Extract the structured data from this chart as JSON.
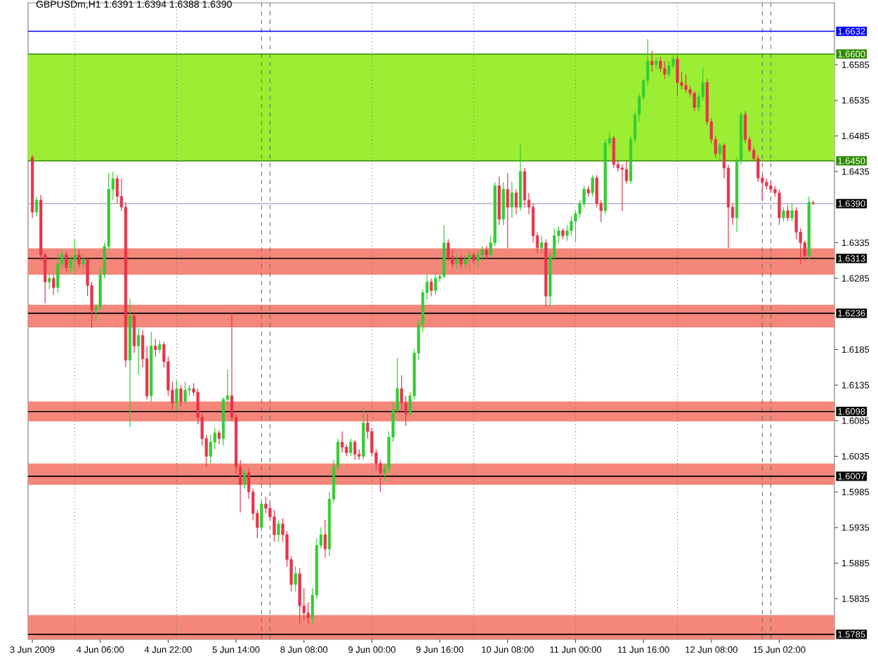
{
  "chart_data": {
    "type": "candlestick",
    "title": "GBPUSDm,H1 1.6391 1.6394 1.6388 1.6390",
    "categories": [
      "3 Jun 2009",
      null,
      null,
      null,
      null,
      null,
      null,
      null,
      null,
      null,
      null,
      null,
      null,
      null,
      null,
      null,
      "4 Jun 06:00",
      null,
      null,
      null,
      null,
      null,
      null,
      null,
      null,
      null,
      null,
      null,
      null,
      null,
      null,
      null,
      "4 Jun 22:00",
      null,
      null,
      null,
      null,
      null,
      null,
      null,
      null,
      null,
      null,
      null,
      null,
      null,
      null,
      null,
      "5 Jun 14:00",
      null,
      null,
      null,
      null,
      null,
      null,
      null,
      null,
      null,
      null,
      null,
      null,
      null,
      null,
      null,
      "8 Jun 08:00",
      null,
      null,
      null,
      null,
      null,
      null,
      null,
      null,
      null,
      null,
      null,
      null,
      null,
      null,
      null,
      "9 Jun 00:00",
      null,
      null,
      null,
      null,
      null,
      null,
      null,
      null,
      null,
      null,
      null,
      null,
      null,
      null,
      null,
      "9 Jun 16:00",
      null,
      null,
      null,
      null,
      null,
      null,
      null,
      null,
      null,
      null,
      null,
      null,
      null,
      null,
      null,
      "10 Jun 08:00",
      null,
      null,
      null,
      null,
      null,
      null,
      null,
      null,
      null,
      null,
      null,
      null,
      null,
      null,
      null,
      "11 Jun 00:00",
      null,
      null,
      null,
      null,
      null,
      null,
      null,
      null,
      null,
      null,
      null,
      null,
      null,
      null,
      null,
      "11 Jun 16:00",
      null,
      null,
      null,
      null,
      null,
      null,
      null,
      null,
      null,
      null,
      null,
      null,
      null,
      null,
      null,
      "12 Jun 08:00",
      null,
      null,
      null,
      null,
      null,
      null,
      null,
      null,
      null,
      null,
      null,
      null,
      null,
      null,
      null,
      "15 Jun 02:00",
      null,
      null,
      null,
      null,
      null,
      null,
      null,
      null
    ],
    "ohlc": [
      [
        1.6455,
        1.6458,
        1.637,
        1.6378
      ],
      [
        1.6378,
        1.64,
        1.6372,
        1.6395
      ],
      [
        1.6395,
        1.6402,
        1.631,
        1.6318
      ],
      [
        1.6318,
        1.632,
        1.625,
        1.628
      ],
      [
        1.628,
        1.6292,
        1.627,
        1.6285
      ],
      [
        1.6285,
        1.629,
        1.6262,
        1.6272
      ],
      [
        1.6272,
        1.632,
        1.6265,
        1.6305
      ],
      [
        1.6305,
        1.6325,
        1.63,
        1.6318
      ],
      [
        1.6318,
        1.6322,
        1.6295,
        1.63
      ],
      [
        1.63,
        1.6315,
        1.6292,
        1.631
      ],
      [
        1.631,
        1.634,
        1.6295,
        1.6318
      ],
      [
        1.6318,
        1.6325,
        1.63,
        1.6305
      ],
      [
        1.6305,
        1.632,
        1.6298,
        1.6312
      ],
      [
        1.6312,
        1.6315,
        1.626,
        1.6275
      ],
      [
        1.6275,
        1.628,
        1.6215,
        1.624
      ],
      [
        1.624,
        1.625,
        1.6225,
        1.6245
      ],
      [
        1.6245,
        1.63,
        1.624,
        1.629
      ],
      [
        1.629,
        1.6335,
        1.6285,
        1.633
      ],
      [
        1.633,
        1.6433,
        1.6325,
        1.641
      ],
      [
        1.641,
        1.6435,
        1.6395,
        1.6425
      ],
      [
        1.6425,
        1.643,
        1.639,
        1.64
      ],
      [
        1.64,
        1.6425,
        1.638,
        1.6385
      ],
      [
        1.6385,
        1.6392,
        1.616,
        1.617
      ],
      [
        1.617,
        1.6256,
        1.6076,
        1.6232
      ],
      [
        1.6232,
        1.6236,
        1.618,
        1.619
      ],
      [
        1.619,
        1.6215,
        1.615,
        1.6205
      ],
      [
        1.6205,
        1.6212,
        1.616,
        1.6172
      ],
      [
        1.6172,
        1.619,
        1.6115,
        1.612
      ],
      [
        1.612,
        1.621,
        1.6112,
        1.619
      ],
      [
        1.619,
        1.62,
        1.6175,
        1.6185
      ],
      [
        1.6185,
        1.6198,
        1.618,
        1.6192
      ],
      [
        1.6192,
        1.6196,
        1.616,
        1.6168
      ],
      [
        1.6168,
        1.6175,
        1.612,
        1.6128
      ],
      [
        1.6128,
        1.614,
        1.61,
        1.611
      ],
      [
        1.611,
        1.6142,
        1.61,
        1.613
      ],
      [
        1.613,
        1.6135,
        1.6105,
        1.6112
      ],
      [
        1.6112,
        1.614,
        1.6108,
        1.6128
      ],
      [
        1.6128,
        1.6135,
        1.612,
        1.613
      ],
      [
        1.613,
        1.6138,
        1.612,
        1.6125
      ],
      [
        1.6125,
        1.613,
        1.608,
        1.609
      ],
      [
        1.609,
        1.6095,
        1.605,
        1.606
      ],
      [
        1.606,
        1.6065,
        1.602,
        1.6035
      ],
      [
        1.6035,
        1.6065,
        1.6025,
        1.6055
      ],
      [
        1.6055,
        1.6075,
        1.6045,
        1.6068
      ],
      [
        1.6068,
        1.6072,
        1.6052,
        1.606
      ],
      [
        1.606,
        1.6118,
        1.605,
        1.6115
      ],
      [
        1.6115,
        1.6157,
        1.6105,
        1.612
      ],
      [
        1.612,
        1.6238,
        1.6085,
        1.609
      ],
      [
        1.609,
        1.6095,
        1.601,
        1.602
      ],
      [
        1.602,
        1.603,
        1.5956,
        1.5995
      ],
      [
        1.5995,
        1.6016,
        1.599,
        1.6012
      ],
      [
        1.6012,
        1.6018,
        1.5975,
        1.5985
      ],
      [
        1.5985,
        1.599,
        1.5945,
        1.5955
      ],
      [
        1.5955,
        1.596,
        1.592,
        1.5935
      ],
      [
        1.5935,
        1.5975,
        1.593,
        1.5968
      ],
      [
        1.5968,
        1.5978,
        1.5955,
        1.5962
      ],
      [
        1.5962,
        1.597,
        1.5945,
        1.595
      ],
      [
        1.595,
        1.596,
        1.5915,
        1.5925
      ],
      [
        1.5925,
        1.5945,
        1.5915,
        1.594
      ],
      [
        1.594,
        1.5948,
        1.5915,
        1.5925
      ],
      [
        1.5925,
        1.593,
        1.588,
        1.589
      ],
      [
        1.589,
        1.5895,
        1.5845,
        1.5855
      ],
      [
        1.5855,
        1.588,
        1.5845,
        1.587
      ],
      [
        1.587,
        1.5878,
        1.58,
        1.5825
      ],
      [
        1.5825,
        1.585,
        1.5805,
        1.5815
      ],
      [
        1.5815,
        1.583,
        1.58,
        1.5808
      ],
      [
        1.5808,
        1.585,
        1.58,
        1.584
      ],
      [
        1.584,
        1.592,
        1.5835,
        1.591
      ],
      [
        1.591,
        1.5935,
        1.5905,
        1.5925
      ],
      [
        1.5925,
        1.5946,
        1.5893,
        1.5905
      ],
      [
        1.5905,
        1.5985,
        1.5895,
        1.5975
      ],
      [
        1.5975,
        1.603,
        1.597,
        1.602
      ],
      [
        1.602,
        1.606,
        1.6015,
        1.6055
      ],
      [
        1.6055,
        1.607,
        1.604,
        1.6048
      ],
      [
        1.6048,
        1.6052,
        1.6035,
        1.604
      ],
      [
        1.604,
        1.606,
        1.6035,
        1.6055
      ],
      [
        1.6055,
        1.6058,
        1.603,
        1.6038
      ],
      [
        1.6038,
        1.6045,
        1.603,
        1.6035
      ],
      [
        1.6035,
        1.6104,
        1.603,
        1.6082
      ],
      [
        1.6082,
        1.6095,
        1.606,
        1.607
      ],
      [
        1.607,
        1.6075,
        1.6035,
        1.604
      ],
      [
        1.604,
        1.6045,
        1.6015,
        1.6025
      ],
      [
        1.6025,
        1.603,
        1.5985,
        1.6012
      ],
      [
        1.6012,
        1.6025,
        1.6,
        1.6018
      ],
      [
        1.6018,
        1.607,
        1.601,
        1.6062
      ],
      [
        1.6062,
        1.611,
        1.6055,
        1.61
      ],
      [
        1.61,
        1.6173,
        1.6095,
        1.613
      ],
      [
        1.613,
        1.6149,
        1.61,
        1.611
      ],
      [
        1.611,
        1.612,
        1.6078,
        1.6095
      ],
      [
        1.6095,
        1.6125,
        1.609,
        1.612
      ],
      [
        1.612,
        1.6185,
        1.6115,
        1.618
      ],
      [
        1.618,
        1.6226,
        1.617,
        1.622
      ],
      [
        1.622,
        1.627,
        1.621,
        1.6265
      ],
      [
        1.6265,
        1.629,
        1.6255,
        1.628
      ],
      [
        1.628,
        1.6285,
        1.626,
        1.6268
      ],
      [
        1.6268,
        1.629,
        1.6262,
        1.6285
      ],
      [
        1.6285,
        1.6292,
        1.628,
        1.6288
      ],
      [
        1.6288,
        1.636,
        1.6285,
        1.6335
      ],
      [
        1.6335,
        1.634,
        1.631,
        1.6315
      ],
      [
        1.6315,
        1.6325,
        1.63,
        1.6305
      ],
      [
        1.6305,
        1.632,
        1.6298,
        1.6312
      ],
      [
        1.6312,
        1.6318,
        1.63,
        1.6305
      ],
      [
        1.6305,
        1.6318,
        1.63,
        1.6312
      ],
      [
        1.6312,
        1.6325,
        1.6295,
        1.6318
      ],
      [
        1.6318,
        1.6322,
        1.6305,
        1.631
      ],
      [
        1.631,
        1.6325,
        1.63,
        1.6318
      ],
      [
        1.6318,
        1.633,
        1.631,
        1.6325
      ],
      [
        1.6325,
        1.633,
        1.6312,
        1.6318
      ],
      [
        1.6318,
        1.6345,
        1.6315,
        1.6335
      ],
      [
        1.6335,
        1.642,
        1.633,
        1.6415
      ],
      [
        1.6415,
        1.6428,
        1.636,
        1.6368
      ],
      [
        1.6368,
        1.642,
        1.636,
        1.641
      ],
      [
        1.641,
        1.6433,
        1.6327,
        1.6385
      ],
      [
        1.6385,
        1.642,
        1.637,
        1.6405
      ],
      [
        1.6405,
        1.641,
        1.6375,
        1.6385
      ],
      [
        1.6385,
        1.6473,
        1.638,
        1.6435
      ],
      [
        1.6435,
        1.644,
        1.6385,
        1.6395
      ],
      [
        1.6395,
        1.6405,
        1.6375,
        1.6385
      ],
      [
        1.6385,
        1.639,
        1.6335,
        1.6345
      ],
      [
        1.6345,
        1.635,
        1.632,
        1.6328
      ],
      [
        1.6328,
        1.6345,
        1.632,
        1.6335
      ],
      [
        1.6335,
        1.634,
        1.6246,
        1.626
      ],
      [
        1.626,
        1.6321,
        1.6245,
        1.6315
      ],
      [
        1.6315,
        1.6355,
        1.631,
        1.6345
      ],
      [
        1.6345,
        1.6358,
        1.6335,
        1.6352
      ],
      [
        1.6352,
        1.6355,
        1.634,
        1.6345
      ],
      [
        1.6345,
        1.636,
        1.6338,
        1.6352
      ],
      [
        1.6352,
        1.6372,
        1.6345,
        1.6365
      ],
      [
        1.6365,
        1.638,
        1.6336,
        1.6376
      ],
      [
        1.6376,
        1.6395,
        1.637,
        1.639
      ],
      [
        1.639,
        1.6415,
        1.6385,
        1.641
      ],
      [
        1.641,
        1.6415,
        1.64,
        1.6405
      ],
      [
        1.6405,
        1.643,
        1.64,
        1.6426
      ],
      [
        1.6426,
        1.643,
        1.6385,
        1.639
      ],
      [
        1.639,
        1.6395,
        1.6364,
        1.638
      ],
      [
        1.638,
        1.648,
        1.6375,
        1.6475
      ],
      [
        1.6475,
        1.649,
        1.647,
        1.6482
      ],
      [
        1.6482,
        1.6485,
        1.644,
        1.6445
      ],
      [
        1.6445,
        1.645,
        1.6435,
        1.644
      ],
      [
        1.644,
        1.6445,
        1.638,
        1.6438
      ],
      [
        1.6438,
        1.645,
        1.6418,
        1.6422
      ],
      [
        1.6422,
        1.6485,
        1.6418,
        1.648
      ],
      [
        1.648,
        1.652,
        1.6475,
        1.6515
      ],
      [
        1.6515,
        1.6545,
        1.6505,
        1.654
      ],
      [
        1.654,
        1.6565,
        1.6535,
        1.6563
      ],
      [
        1.6563,
        1.6621,
        1.6555,
        1.659
      ],
      [
        1.659,
        1.6605,
        1.6575,
        1.6585
      ],
      [
        1.6585,
        1.6595,
        1.6578,
        1.659
      ],
      [
        1.659,
        1.6596,
        1.6575,
        1.658
      ],
      [
        1.658,
        1.659,
        1.6565,
        1.6572
      ],
      [
        1.6572,
        1.659,
        1.6568,
        1.6584
      ],
      [
        1.6584,
        1.6598,
        1.658,
        1.6593
      ],
      [
        1.6593,
        1.6598,
        1.6542,
        1.656
      ],
      [
        1.656,
        1.6575,
        1.655,
        1.6556
      ],
      [
        1.6556,
        1.6572,
        1.6545,
        1.655
      ],
      [
        1.655,
        1.6555,
        1.654,
        1.6545
      ],
      [
        1.6545,
        1.6548,
        1.652,
        1.6525
      ],
      [
        1.6525,
        1.6545,
        1.652,
        1.654
      ],
      [
        1.654,
        1.6581,
        1.6535,
        1.656
      ],
      [
        1.656,
        1.6565,
        1.65,
        1.6505
      ],
      [
        1.6505,
        1.651,
        1.6475,
        1.648
      ],
      [
        1.648,
        1.6485,
        1.6455,
        1.646
      ],
      [
        1.646,
        1.6475,
        1.645,
        1.6472
      ],
      [
        1.6472,
        1.6475,
        1.6425,
        1.644
      ],
      [
        1.644,
        1.6445,
        1.6327,
        1.6385
      ],
      [
        1.6385,
        1.639,
        1.636,
        1.637
      ],
      [
        1.637,
        1.6455,
        1.635,
        1.645
      ],
      [
        1.645,
        1.652,
        1.6445,
        1.6515
      ],
      [
        1.6515,
        1.652,
        1.6475,
        1.648
      ],
      [
        1.648,
        1.6484,
        1.6462,
        1.6465
      ],
      [
        1.6465,
        1.647,
        1.645,
        1.6453
      ],
      [
        1.6453,
        1.6458,
        1.642,
        1.6426
      ],
      [
        1.6426,
        1.643,
        1.6394,
        1.642
      ],
      [
        1.642,
        1.6425,
        1.641,
        1.6415
      ],
      [
        1.6415,
        1.642,
        1.6405,
        1.641
      ],
      [
        1.641,
        1.6415,
        1.64,
        1.6405
      ],
      [
        1.6405,
        1.641,
        1.636,
        1.637
      ],
      [
        1.637,
        1.6385,
        1.6365,
        1.638
      ],
      [
        1.638,
        1.6388,
        1.6365,
        1.637
      ],
      [
        1.637,
        1.639,
        1.6365,
        1.638
      ],
      [
        1.638,
        1.6385,
        1.634,
        1.635
      ],
      [
        1.635,
        1.6355,
        1.6305,
        1.6335
      ],
      [
        1.6335,
        1.6338,
        1.631,
        1.6317
      ],
      [
        1.6317,
        1.64,
        1.631,
        1.6392
      ],
      [
        1.6391,
        1.6394,
        1.6388,
        1.639
      ]
    ],
    "colors": [
      "#e8334a",
      "#32cd32",
      "#e8334a",
      "#e8334a",
      "#32cd32",
      "#e8334a",
      "#32cd32",
      "#32cd32",
      "#e8334a",
      "#32cd32",
      "#32cd32",
      "#e8334a",
      "#32cd32",
      "#e8334a",
      "#e8334a",
      "#32cd32",
      "#32cd32",
      "#32cd32",
      "#32cd32",
      "#32cd32",
      "#e8334a",
      "#e8334a",
      "#e8334a",
      "#32cd32",
      "#e8334a",
      "#32cd32",
      "#e8334a",
      "#e8334a",
      "#32cd32",
      "#e8334a",
      "#32cd32",
      "#e8334a",
      "#e8334a",
      "#e8334a",
      "#32cd32",
      "#e8334a",
      "#32cd32",
      "#32cd32",
      "#e8334a",
      "#e8334a",
      "#e8334a",
      "#e8334a",
      "#32cd32",
      "#32cd32",
      "#e8334a",
      "#32cd32",
      "#32cd32",
      "#e8334a",
      "#e8334a",
      "#e8334a",
      "#32cd32",
      "#e8334a",
      "#e8334a",
      "#e8334a",
      "#32cd32",
      "#e8334a",
      "#e8334a",
      "#e8334a",
      "#32cd32",
      "#e8334a",
      "#e8334a",
      "#e8334a",
      "#32cd32",
      "#e8334a",
      "#e8334a",
      "#e8334a",
      "#32cd32",
      "#32cd32",
      "#32cd32",
      "#e8334a",
      "#32cd32",
      "#32cd32",
      "#32cd32",
      "#e8334a",
      "#e8334a",
      "#32cd32",
      "#e8334a",
      "#e8334a",
      "#32cd32",
      "#e8334a",
      "#e8334a",
      "#e8334a",
      "#e8334a",
      "#32cd32",
      "#32cd32",
      "#32cd32",
      "#32cd32",
      "#e8334a",
      "#e8334a",
      "#32cd32",
      "#32cd32",
      "#32cd32",
      "#32cd32",
      "#32cd32",
      "#e8334a",
      "#32cd32",
      "#32cd32",
      "#32cd32",
      "#e8334a",
      "#e8334a",
      "#32cd32",
      "#e8334a",
      "#32cd32",
      "#32cd32",
      "#e8334a",
      "#32cd32",
      "#32cd32",
      "#e8334a",
      "#32cd32",
      "#32cd32",
      "#e8334a",
      "#32cd32",
      "#e8334a",
      "#32cd32",
      "#e8334a",
      "#32cd32",
      "#e8334a",
      "#e8334a",
      "#e8334a",
      "#e8334a",
      "#32cd32",
      "#e8334a",
      "#32cd32",
      "#32cd32",
      "#32cd32",
      "#e8334a",
      "#32cd32",
      "#32cd32",
      "#32cd32",
      "#32cd32",
      "#32cd32",
      "#e8334a",
      "#32cd32",
      "#e8334a",
      "#e8334a",
      "#32cd32",
      "#32cd32",
      "#e8334a",
      "#e8334a",
      "#e8334a",
      "#e8334a",
      "#32cd32",
      "#32cd32",
      "#32cd32",
      "#32cd32",
      "#32cd32",
      "#e8334a",
      "#32cd32",
      "#e8334a",
      "#e8334a",
      "#32cd32",
      "#32cd32",
      "#e8334a",
      "#e8334a",
      "#e8334a",
      "#e8334a",
      "#e8334a",
      "#32cd32",
      "#32cd32",
      "#e8334a",
      "#e8334a",
      "#e8334a",
      "#32cd32",
      "#e8334a",
      "#e8334a",
      "#e8334a",
      "#32cd32",
      "#32cd32",
      "#e8334a",
      "#e8334a",
      "#e8334a",
      "#e8334a",
      "#e8334a",
      "#e8334a",
      "#e8334a",
      "#e8334a",
      "#e8334a",
      "#32cd32",
      "#e8334a",
      "#32cd32",
      "#e8334a",
      "#e8334a",
      "#e8334a",
      "#32cd32",
      "#e8334a"
    ],
    "ylim": [
      1.5778,
      1.6672
    ],
    "yticks": [
      1.6585,
      1.6535,
      1.6485,
      1.6435,
      1.6335,
      1.6285,
      1.6185,
      1.6135,
      1.6085,
      1.6035,
      1.5985,
      1.5935,
      1.5885,
      1.5835
    ],
    "bands": [
      {
        "axis": "y",
        "from": 1.645,
        "to": 1.66,
        "color": "#9cee34"
      },
      {
        "axis": "y",
        "from": 1.629,
        "to": 1.6327,
        "color": "#f4877a"
      },
      {
        "axis": "y",
        "from": 1.6216,
        "to": 1.6248,
        "color": "#f4877a"
      },
      {
        "axis": "y",
        "from": 1.6084,
        "to": 1.6112,
        "color": "#f4877a"
      },
      {
        "axis": "y",
        "from": 1.5995,
        "to": 1.6025,
        "color": "#f4877a"
      },
      {
        "axis": "y",
        "from": 1.5778,
        "to": 1.5812,
        "color": "#f4877a"
      }
    ],
    "ref_lines": [
      {
        "axis": "y",
        "value": 1.6632,
        "label": "1.6632",
        "color": "#0000ff",
        "line_style": "solid"
      },
      {
        "axis": "y",
        "value": 1.66,
        "label": "1.6600",
        "color": "#2e8b00",
        "line_style": "solid"
      },
      {
        "axis": "y",
        "value": 1.645,
        "label": "1.6450",
        "color": "#2e8b00",
        "line_style": "solid"
      },
      {
        "axis": "y",
        "value": 1.639,
        "label": "1.6390",
        "color": "#b4b4cc",
        "line_style": "solid"
      },
      {
        "axis": "y",
        "value": 1.6313,
        "label": "1.6313",
        "color": "#000000",
        "line_style": "solid"
      },
      {
        "axis": "y",
        "value": 1.6236,
        "label": "1.6236",
        "color": "#000000",
        "line_style": "solid"
      },
      {
        "axis": "y",
        "value": 1.6098,
        "label": "1.6098",
        "color": "#000000",
        "line_style": "solid"
      },
      {
        "axis": "y",
        "value": 1.6007,
        "label": "1.6007",
        "color": "#000000",
        "line_style": "solid"
      },
      {
        "axis": "y",
        "value": 1.5785,
        "label": "1.5785",
        "color": "#000000",
        "line_style": "solid"
      }
    ]
  }
}
